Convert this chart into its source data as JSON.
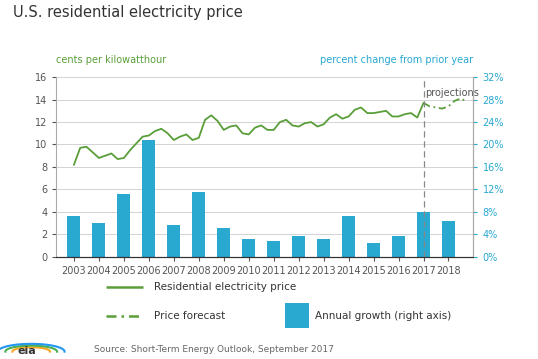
{
  "title": "U.S. residential electricity price",
  "ylabel_left": "cents per kilowatthour",
  "ylabel_right": "percent change from prior year",
  "source": "Source: Short-Term Energy Outlook, September 2017",
  "projection_label": "projections",
  "projection_x": 2017,
  "line_color": "#5a9e3a",
  "bar_color": "#29a8d0",
  "title_color": "#333333",
  "axis_label_color_left": "#5a9e3a",
  "axis_label_color_right": "#29a8d0",
  "ylim_left": [
    0,
    16
  ],
  "ylim_right": [
    0,
    8
  ],
  "yticks_left": [
    0,
    2,
    4,
    6,
    8,
    10,
    12,
    14,
    16
  ],
  "ytick_right_labels": [
    "0%",
    "4%",
    "8%",
    "12%",
    "16%",
    "20%",
    "24%",
    "28%",
    "32%"
  ],
  "price_x": [
    2003.0,
    2003.25,
    2003.5,
    2003.75,
    2004.0,
    2004.25,
    2004.5,
    2004.75,
    2005.0,
    2005.25,
    2005.5,
    2005.75,
    2006.0,
    2006.25,
    2006.5,
    2006.75,
    2007.0,
    2007.25,
    2007.5,
    2007.75,
    2008.0,
    2008.25,
    2008.5,
    2008.75,
    2009.0,
    2009.25,
    2009.5,
    2009.75,
    2010.0,
    2010.25,
    2010.5,
    2010.75,
    2011.0,
    2011.25,
    2011.5,
    2011.75,
    2012.0,
    2012.25,
    2012.5,
    2012.75,
    2013.0,
    2013.25,
    2013.5,
    2013.75,
    2014.0,
    2014.25,
    2014.5,
    2014.75,
    2015.0,
    2015.25,
    2015.5,
    2015.75,
    2016.0,
    2016.25,
    2016.5,
    2016.75,
    2017.0
  ],
  "price_y": [
    8.2,
    9.7,
    9.8,
    9.3,
    8.8,
    9.0,
    9.2,
    8.7,
    8.8,
    9.5,
    10.1,
    10.7,
    10.8,
    11.2,
    11.4,
    11.0,
    10.4,
    10.7,
    10.9,
    10.4,
    10.6,
    12.2,
    12.6,
    12.1,
    11.3,
    11.6,
    11.7,
    11.0,
    10.9,
    11.5,
    11.7,
    11.3,
    11.3,
    12.0,
    12.2,
    11.7,
    11.6,
    11.9,
    12.0,
    11.6,
    11.8,
    12.4,
    12.7,
    12.3,
    12.5,
    13.1,
    13.3,
    12.8,
    12.8,
    12.9,
    13.0,
    12.5,
    12.5,
    12.7,
    12.8,
    12.4,
    13.7
  ],
  "forecast_x": [
    2017.0,
    2017.25,
    2017.5,
    2017.75,
    2018.0,
    2018.25,
    2018.5,
    2018.75
  ],
  "forecast_y": [
    13.7,
    13.4,
    13.3,
    13.2,
    13.4,
    13.9,
    14.1,
    13.8
  ],
  "bar_x": [
    2003,
    2004,
    2005,
    2006,
    2007,
    2008,
    2009,
    2010,
    2011,
    2012,
    2013,
    2014,
    2015,
    2016,
    2017,
    2018
  ],
  "bar_y": [
    1.8,
    1.5,
    2.8,
    5.2,
    1.4,
    2.9,
    1.3,
    0.8,
    0.7,
    0.9,
    0.8,
    1.8,
    0.6,
    0.9,
    2.0,
    1.6
  ],
  "legend_labels": [
    "Residential electricity price",
    "Price forecast",
    "Annual growth (right axis)"
  ],
  "background_color": "#ffffff",
  "legend_bg_color": "#ebebeb",
  "xlim": [
    2002.3,
    2019.0
  ]
}
